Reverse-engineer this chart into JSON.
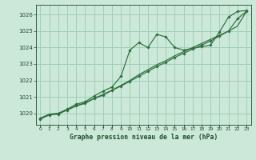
{
  "title": "Graphe pression niveau de la mer (hPa)",
  "background_color": "#cce8d8",
  "grid_color": "#99ccb3",
  "line_color": "#2d6e3e",
  "text_color": "#1a4d2a",
  "x_labels": [
    "0",
    "1",
    "2",
    "3",
    "4",
    "5",
    "6",
    "7",
    "8",
    "9",
    "10",
    "11",
    "12",
    "13",
    "14",
    "15",
    "16",
    "17",
    "18",
    "19",
    "20",
    "21",
    "22",
    "23"
  ],
  "ylim": [
    1019.3,
    1026.6
  ],
  "yticks": [
    1020,
    1021,
    1022,
    1023,
    1024,
    1025,
    1026
  ],
  "series1_x": [
    0,
    1,
    2,
    3,
    4,
    5,
    6,
    7,
    8,
    9,
    10,
    11,
    12,
    13,
    14,
    15,
    16,
    17,
    18,
    19,
    20,
    21,
    22,
    23
  ],
  "series1_y": [
    1019.7,
    1019.95,
    1020.0,
    1020.25,
    1020.55,
    1020.7,
    1021.05,
    1021.35,
    1021.6,
    1022.25,
    1023.85,
    1024.3,
    1024.0,
    1024.8,
    1024.65,
    1024.0,
    1023.85,
    1023.95,
    1024.05,
    1024.15,
    1024.95,
    1025.85,
    1026.2,
    1026.25
  ],
  "series2_x": [
    0,
    1,
    2,
    3,
    4,
    5,
    6,
    7,
    8,
    9,
    10,
    11,
    12,
    13,
    14,
    15,
    16,
    17,
    18,
    19,
    20,
    21,
    22,
    23
  ],
  "series2_y": [
    1019.7,
    1019.9,
    1020.0,
    1020.2,
    1020.45,
    1020.65,
    1020.9,
    1021.15,
    1021.4,
    1021.7,
    1022.0,
    1022.35,
    1022.65,
    1022.95,
    1023.2,
    1023.5,
    1023.75,
    1024.0,
    1024.25,
    1024.5,
    1024.75,
    1025.0,
    1025.3,
    1026.2
  ],
  "series3_x": [
    0,
    1,
    2,
    3,
    4,
    5,
    6,
    7,
    8,
    9,
    10,
    11,
    12,
    13,
    14,
    15,
    16,
    17,
    18,
    19,
    20,
    21,
    22,
    23
  ],
  "series3_y": [
    1019.65,
    1019.9,
    1019.95,
    1020.2,
    1020.45,
    1020.6,
    1020.9,
    1021.1,
    1021.4,
    1021.65,
    1021.95,
    1022.25,
    1022.55,
    1022.85,
    1023.1,
    1023.4,
    1023.65,
    1023.9,
    1024.15,
    1024.4,
    1024.7,
    1025.0,
    1025.75,
    1026.2
  ]
}
